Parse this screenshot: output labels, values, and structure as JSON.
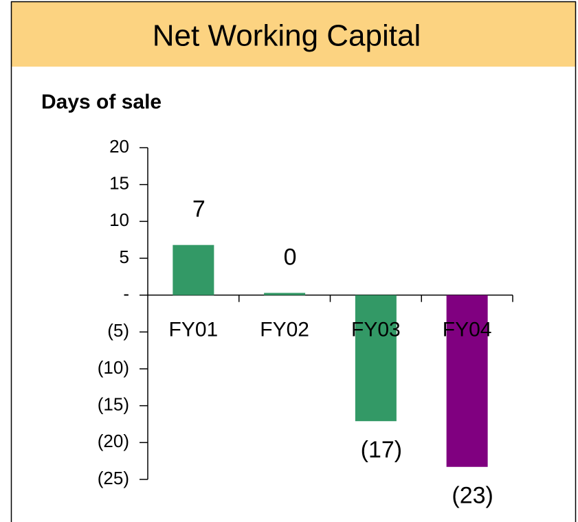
{
  "chart_data": {
    "type": "bar",
    "title": "Net Working Capital",
    "subtitle": "Days of sale",
    "categories": [
      "FY01",
      "FY02",
      "FY03",
      "FY04"
    ],
    "values": [
      6.8,
      0.3,
      -17.1,
      -23.3
    ],
    "value_labels": [
      "7",
      "0",
      "(17)",
      "(23)"
    ],
    "colors": [
      "#339966",
      "#339966",
      "#339966",
      "#800080"
    ],
    "ylim": [
      -25,
      20
    ],
    "yticks": [
      {
        "value": -25,
        "label": "(25)"
      },
      {
        "value": -20,
        "label": "(20)"
      },
      {
        "value": -15,
        "label": "(15)"
      },
      {
        "value": -10,
        "label": "(10)"
      },
      {
        "value": -5,
        "label": "(5)"
      },
      {
        "value": 0,
        "label": "-"
      },
      5,
      10,
      15,
      20
    ],
    "grid": false
  }
}
